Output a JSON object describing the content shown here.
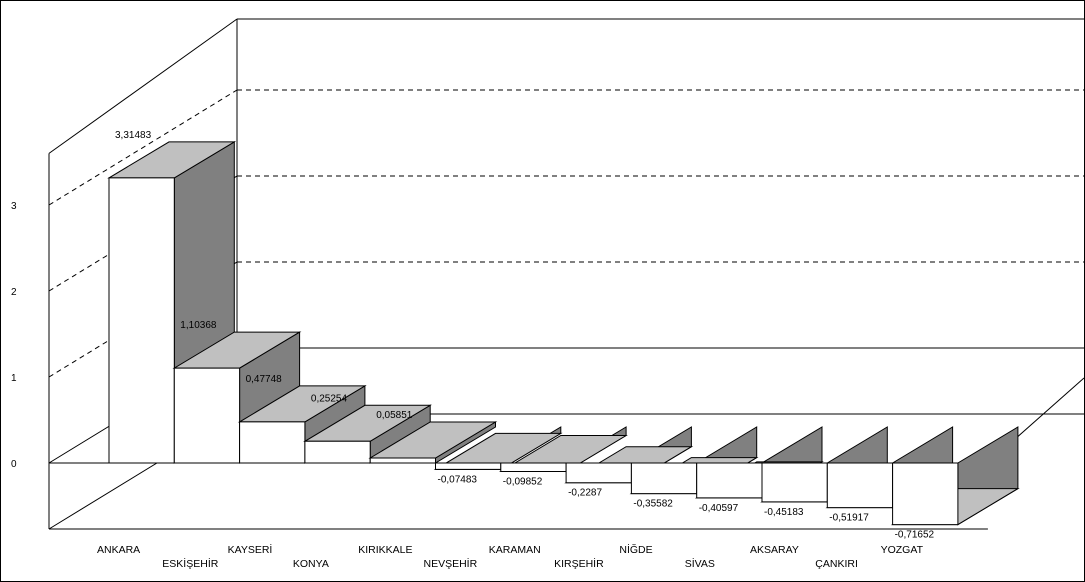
{
  "chart_data": {
    "type": "bar",
    "three_d": true,
    "title": "",
    "xlabel": "",
    "ylabel": "",
    "ylim": [
      -1,
      5
    ],
    "yticks": [
      0,
      1,
      2,
      3
    ],
    "grid": "dashed",
    "legend": "none",
    "categories": [
      "ANKARA",
      "ESKİŞEHİR",
      "KAYSERİ",
      "KONYA",
      "KIRIKKALE",
      "NEVŞEHİR",
      "KARAMAN",
      "KIRŞEHİR",
      "NİĞDE",
      "SİVAS",
      "AKSARAY",
      "ÇANKIRI",
      "YOZGAT"
    ],
    "values": [
      3.31483,
      1.10368,
      0.47748,
      0.25254,
      0.05851,
      -0.07483,
      -0.09852,
      -0.2287,
      -0.35582,
      -0.40597,
      -0.45183,
      -0.51917,
      -0.71652
    ],
    "data_labels": [
      "3,31483",
      "1,10368",
      "0,47748",
      "0,25254",
      "0,05851",
      "-0,07483",
      "-0,09852",
      "-0,2287",
      "-0,35582",
      "-0,40597",
      "-0,45183",
      "-0,51917",
      "-0,71652"
    ],
    "colors": {
      "front": "#ffffff",
      "top": "#c0c0c0",
      "side": "#808080",
      "edge": "#000000",
      "grid": "#000000"
    }
  }
}
